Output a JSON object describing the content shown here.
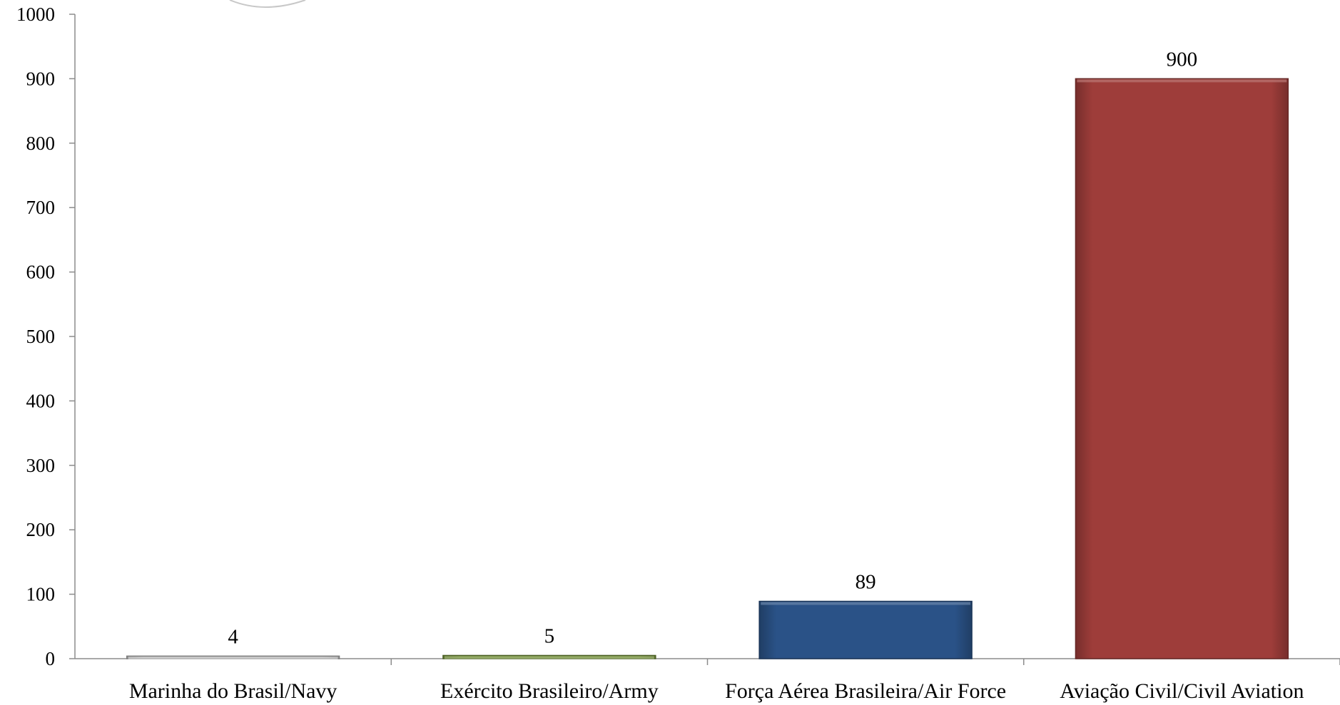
{
  "chart_data": {
    "type": "bar",
    "categories": [
      "Marinha do Brasil/Navy",
      "Exército Brasileiro/Army",
      "Força Aérea Brasileira/Air Force",
      "Aviação Civil/Civil Aviation"
    ],
    "values": [
      4,
      5,
      89,
      900
    ],
    "data_labels": [
      "4",
      "5",
      "89",
      "900"
    ],
    "colors": [
      "#c0c0c0",
      "#77933c",
      "#2a5287",
      "#9e3d3a"
    ],
    "ylim": [
      0,
      1000
    ],
    "yticks": [
      0,
      100,
      200,
      300,
      400,
      500,
      600,
      700,
      800,
      900,
      1000
    ],
    "ytick_labels": [
      "0",
      "100",
      "200",
      "300",
      "400",
      "500",
      "600",
      "700",
      "800",
      "900",
      "1000"
    ],
    "title": "",
    "xlabel": "",
    "ylabel": "",
    "grid": false,
    "legend": "none"
  }
}
